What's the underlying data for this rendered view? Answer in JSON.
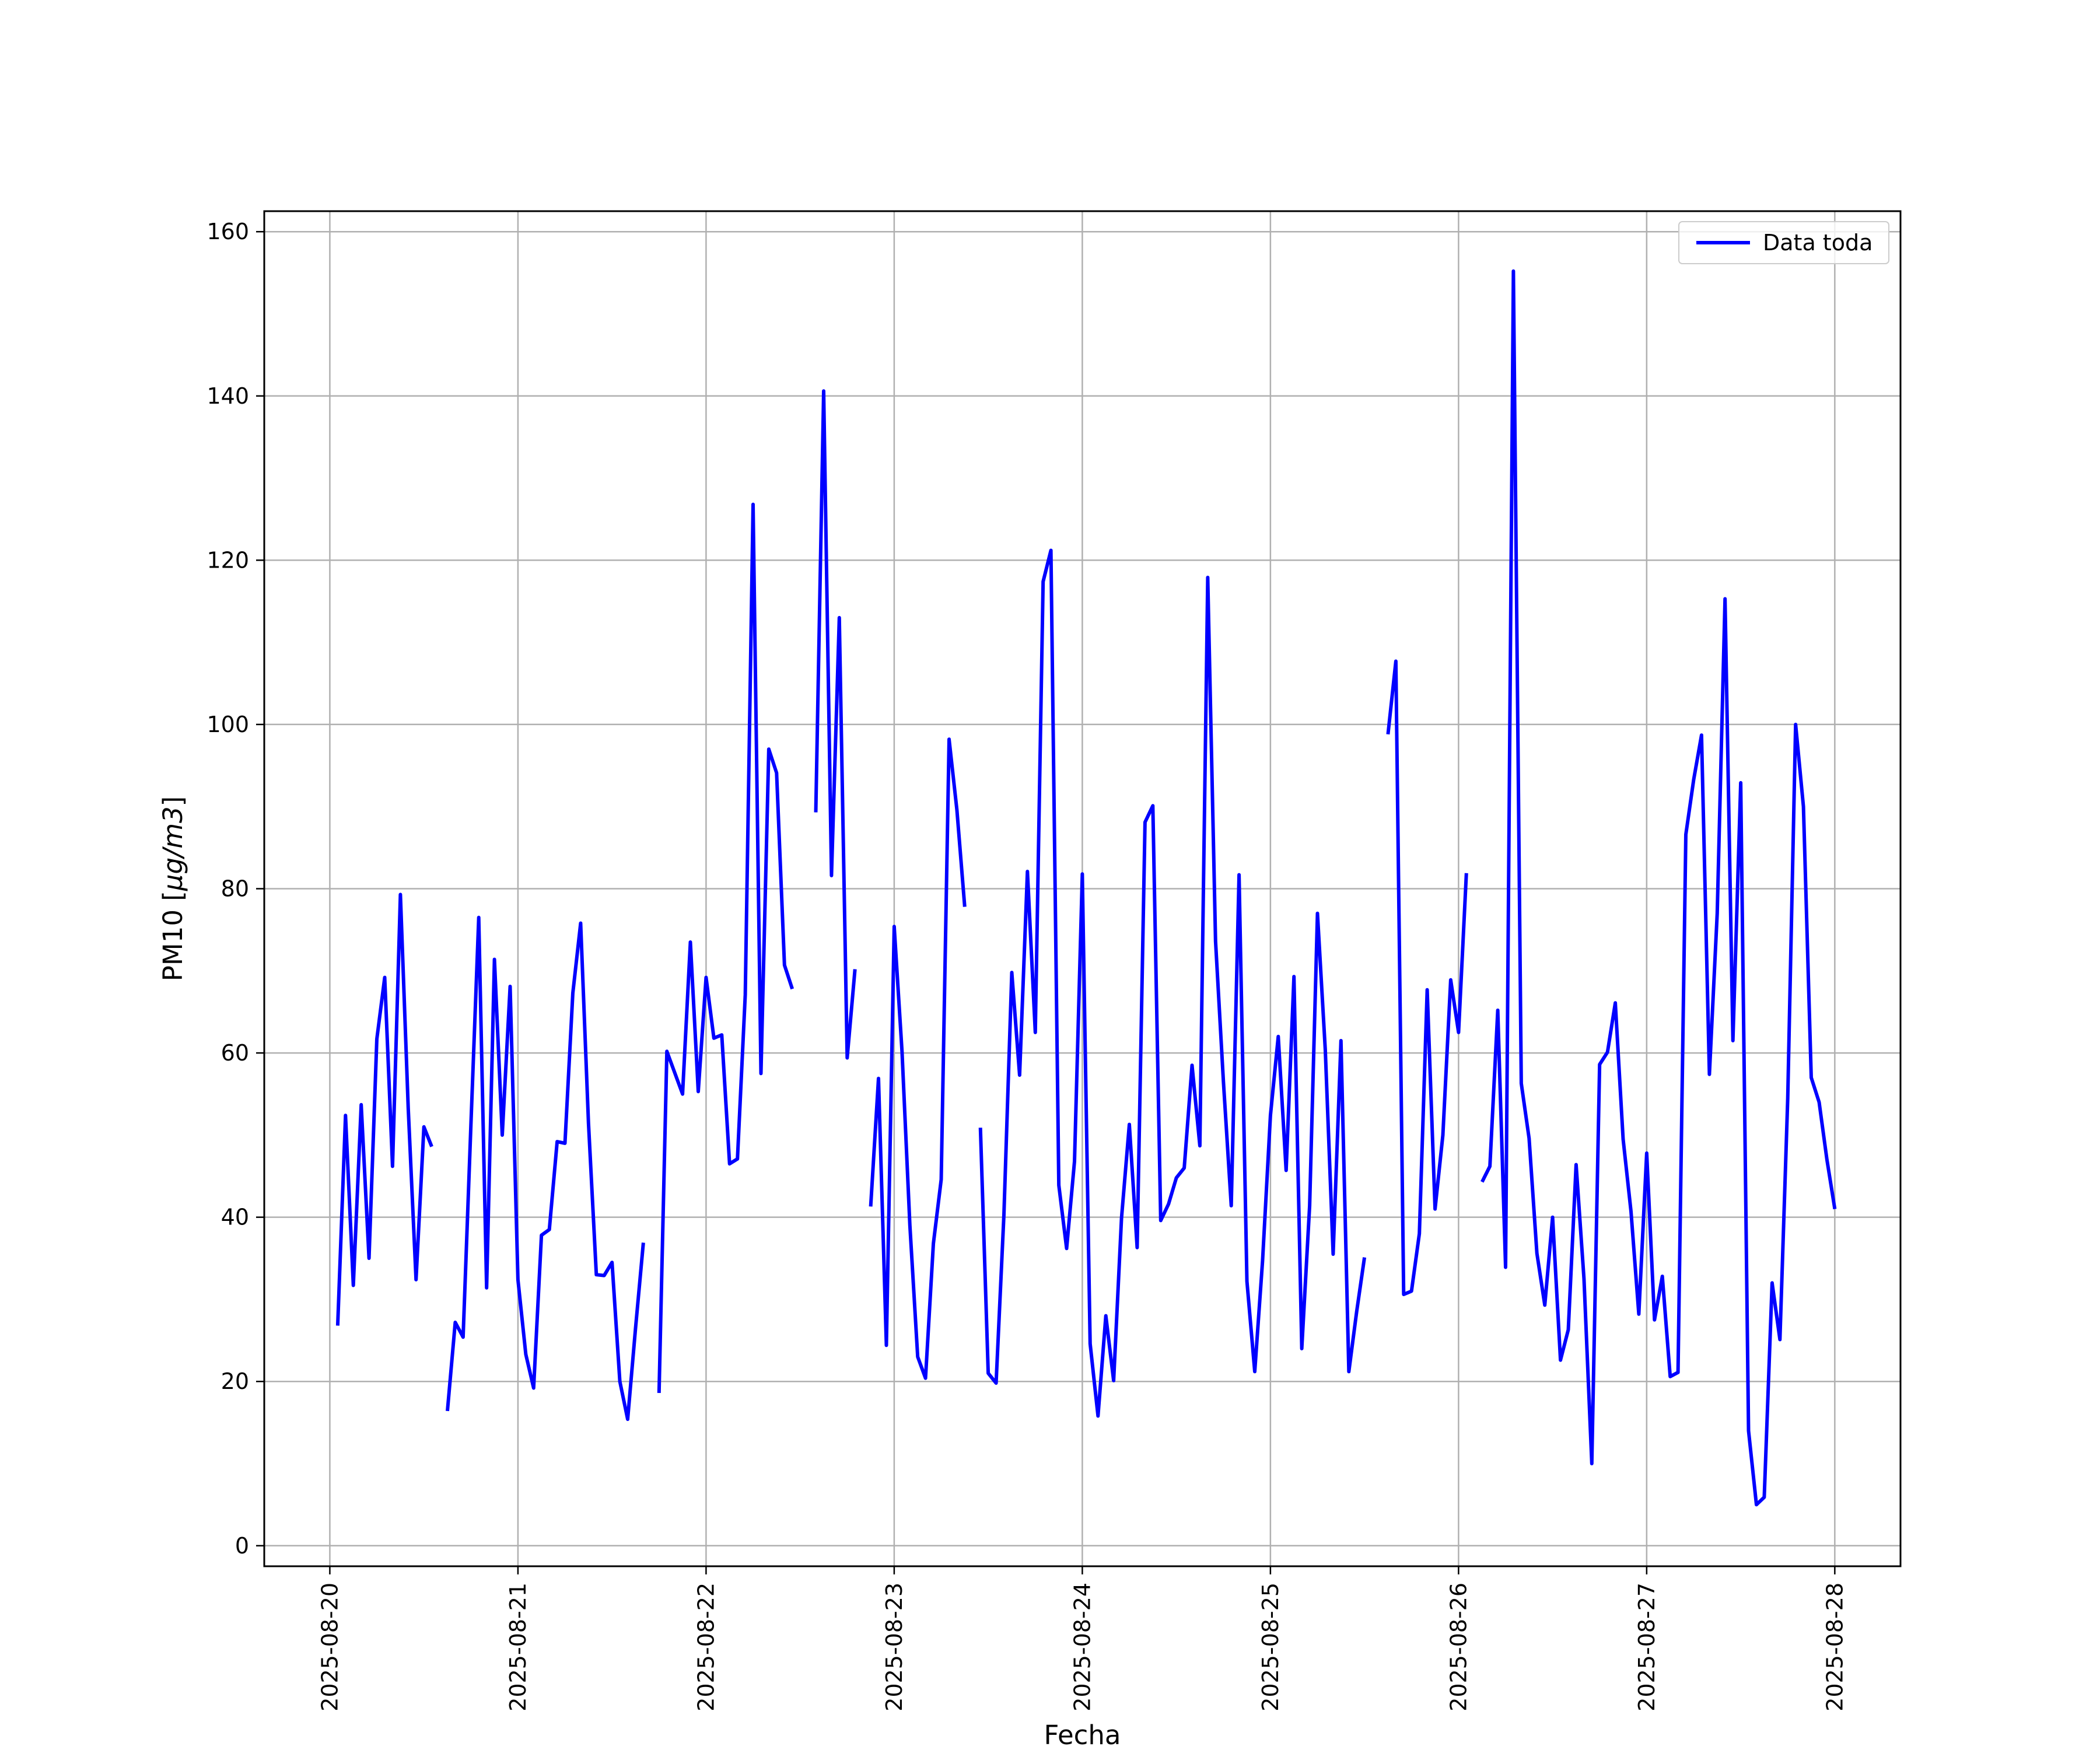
{
  "chart_data": {
    "type": "line",
    "title": "",
    "xlabel": "Fecha",
    "ylabel_text": "PM10 [",
    "ylabel_unit_italic": "μg/m3",
    "ylabel_close": "]",
    "xlim": [
      "2025-08-19 15:38",
      "2025-08-28 08:23"
    ],
    "ylim": [
      -2.5,
      162.5
    ],
    "x_ticks": [
      "2025-08-20",
      "2025-08-21",
      "2025-08-22",
      "2025-08-23",
      "2025-08-24",
      "2025-08-25",
      "2025-08-26",
      "2025-08-27",
      "2025-08-28"
    ],
    "y_ticks": [
      0,
      20,
      40,
      60,
      80,
      100,
      120,
      140,
      160
    ],
    "y_tick_labels": [
      "0",
      "20",
      "40",
      "60",
      "80",
      "100",
      "120",
      "140",
      "160"
    ],
    "grid": true,
    "legend_position": "top-right",
    "colors": {
      "line": "#0000ff",
      "grid": "#b0b0b0",
      "frame": "#000000"
    },
    "series": [
      {
        "name": "Data toda",
        "color": "#0000ff",
        "segments": [
          [
            [
              "2025-08-20 01:00",
              26.8
            ],
            [
              "2025-08-20 02:00",
              52.4
            ],
            [
              "2025-08-20 03:00",
              31.7
            ],
            [
              "2025-08-20 04:00",
              53.7
            ],
            [
              "2025-08-20 05:00",
              35.0
            ],
            [
              "2025-08-20 06:00",
              61.7
            ],
            [
              "2025-08-20 07:00",
              69.2
            ],
            [
              "2025-08-20 08:00",
              46.2
            ],
            [
              "2025-08-20 09:00",
              79.3
            ],
            [
              "2025-08-20 10:00",
              53.3
            ],
            [
              "2025-08-20 11:00",
              32.4
            ],
            [
              "2025-08-20 12:00",
              51.0
            ],
            [
              "2025-08-20 13:00",
              48.6
            ]
          ],
          [
            [
              "2025-08-20 15:00",
              16.4
            ],
            [
              "2025-08-20 16:00",
              27.2
            ],
            [
              "2025-08-20 17:00",
              25.4
            ],
            [
              "2025-08-20 18:00",
              51.3
            ],
            [
              "2025-08-20 19:00",
              76.5
            ],
            [
              "2025-08-20 20:00",
              31.4
            ],
            [
              "2025-08-20 21:00",
              71.4
            ],
            [
              "2025-08-20 22:00",
              50.0
            ],
            [
              "2025-08-20 23:00",
              68.1
            ],
            [
              "2025-08-21 00:00",
              32.4
            ],
            [
              "2025-08-21 01:00",
              23.3
            ],
            [
              "2025-08-21 02:00",
              19.2
            ],
            [
              "2025-08-21 03:00",
              37.8
            ],
            [
              "2025-08-21 04:00",
              38.5
            ],
            [
              "2025-08-21 05:00",
              49.2
            ],
            [
              "2025-08-21 06:00",
              49.0
            ],
            [
              "2025-08-21 07:00",
              67.3
            ],
            [
              "2025-08-21 08:00",
              75.8
            ],
            [
              "2025-08-21 09:00",
              51.5
            ],
            [
              "2025-08-21 10:00",
              33.0
            ],
            [
              "2025-08-21 11:00",
              32.9
            ],
            [
              "2025-08-21 12:00",
              34.5
            ],
            [
              "2025-08-21 13:00",
              20.0
            ],
            [
              "2025-08-21 14:00",
              15.4
            ],
            [
              "2025-08-21 15:00",
              26.5
            ],
            [
              "2025-08-21 16:00",
              36.9
            ]
          ],
          [
            [
              "2025-08-21 18:00",
              18.6
            ],
            [
              "2025-08-21 19:00",
              60.2
            ],
            [
              "2025-08-21 21:00",
              55.0
            ],
            [
              "2025-08-21 22:00",
              73.5
            ],
            [
              "2025-08-21 23:00",
              55.3
            ],
            [
              "2025-08-22 00:00",
              69.2
            ],
            [
              "2025-08-22 01:00",
              61.8
            ],
            [
              "2025-08-22 02:00",
              62.2
            ],
            [
              "2025-08-22 03:00",
              46.5
            ],
            [
              "2025-08-22 04:00",
              47.1
            ],
            [
              "2025-08-22 05:00",
              67.1
            ],
            [
              "2025-08-22 06:00",
              126.8
            ],
            [
              "2025-08-22 07:00",
              57.5
            ],
            [
              "2025-08-22 08:00",
              97.0
            ],
            [
              "2025-08-22 09:00",
              94.1
            ],
            [
              "2025-08-22 10:00",
              70.7
            ],
            [
              "2025-08-22 11:00",
              67.8
            ]
          ],
          [
            [
              "2025-08-22 14:00",
              89.3
            ],
            [
              "2025-08-22 15:00",
              140.6
            ],
            [
              "2025-08-22 16:00",
              81.6
            ],
            [
              "2025-08-22 17:00",
              113.0
            ],
            [
              "2025-08-22 18:00",
              59.4
            ],
            [
              "2025-08-22 19:00",
              70.2
            ]
          ],
          [
            [
              "2025-08-22 21:00",
              41.3
            ],
            [
              "2025-08-22 22:00",
              56.9
            ],
            [
              "2025-08-22 23:00",
              24.4
            ],
            [
              "2025-08-23 00:00",
              75.4
            ],
            [
              "2025-08-23 01:00",
              60.2
            ],
            [
              "2025-08-23 02:00",
              39.0
            ],
            [
              "2025-08-23 03:00",
              23.0
            ],
            [
              "2025-08-23 04:00",
              20.4
            ],
            [
              "2025-08-23 05:00",
              36.8
            ],
            [
              "2025-08-23 06:00",
              44.6
            ],
            [
              "2025-08-23 07:00",
              98.2
            ],
            [
              "2025-08-23 08:00",
              89.6
            ],
            [
              "2025-08-23 09:00",
              77.8
            ]
          ],
          [
            [
              "2025-08-23 11:00",
              50.9
            ],
            [
              "2025-08-23 12:00",
              21.0
            ],
            [
              "2025-08-23 13:00",
              19.8
            ],
            [
              "2025-08-23 14:00",
              40.3
            ],
            [
              "2025-08-23 15:00",
              69.8
            ],
            [
              "2025-08-23 16:00",
              57.3
            ],
            [
              "2025-08-23 17:00",
              82.1
            ],
            [
              "2025-08-23 18:00",
              62.5
            ],
            [
              "2025-08-23 19:00",
              117.4
            ],
            [
              "2025-08-23 20:00",
              121.2
            ],
            [
              "2025-08-23 21:00",
              43.9
            ],
            [
              "2025-08-23 22:00",
              36.2
            ],
            [
              "2025-08-23 23:00",
              46.8
            ],
            [
              "2025-08-24 00:00",
              81.8
            ],
            [
              "2025-08-24 01:00",
              24.6
            ],
            [
              "2025-08-24 02:00",
              15.8
            ],
            [
              "2025-08-24 03:00",
              28.0
            ],
            [
              "2025-08-24 04:00",
              20.1
            ],
            [
              "2025-08-24 05:00",
              39.9
            ],
            [
              "2025-08-24 06:00",
              51.3
            ],
            [
              "2025-08-24 07:00",
              36.3
            ],
            [
              "2025-08-24 08:00",
              88.1
            ],
            [
              "2025-08-24 09:00",
              90.1
            ],
            [
              "2025-08-24 10:00",
              39.6
            ],
            [
              "2025-08-24 11:00",
              41.6
            ],
            [
              "2025-08-24 12:00",
              44.8
            ],
            [
              "2025-08-24 13:00",
              46.0
            ],
            [
              "2025-08-24 14:00",
              58.5
            ],
            [
              "2025-08-24 15:00",
              48.7
            ],
            [
              "2025-08-24 16:00",
              117.9
            ],
            [
              "2025-08-24 17:00",
              73.6
            ],
            [
              "2025-08-24 18:00",
              56.5
            ],
            [
              "2025-08-24 19:00",
              41.4
            ],
            [
              "2025-08-24 20:00",
              81.7
            ],
            [
              "2025-08-24 21:00",
              32.2
            ],
            [
              "2025-08-24 22:00",
              21.2
            ],
            [
              "2025-08-24 23:00",
              34.7
            ],
            [
              "2025-08-25 00:00",
              52.4
            ],
            [
              "2025-08-25 01:00",
              62.0
            ],
            [
              "2025-08-25 02:00",
              45.7
            ],
            [
              "2025-08-25 03:00",
              69.3
            ],
            [
              "2025-08-25 04:00",
              24.0
            ],
            [
              "2025-08-25 05:00",
              41.4
            ],
            [
              "2025-08-25 06:00",
              77.0
            ],
            [
              "2025-08-25 07:00",
              60.4
            ],
            [
              "2025-08-25 08:00",
              35.5
            ],
            [
              "2025-08-25 09:00",
              61.5
            ],
            [
              "2025-08-25 10:00",
              21.2
            ],
            [
              "2025-08-25 11:00",
              28.5
            ],
            [
              "2025-08-25 12:00",
              35.1
            ]
          ],
          [
            [
              "2025-08-25 15:00",
              98.8
            ],
            [
              "2025-08-25 16:00",
              107.7
            ],
            [
              "2025-08-25 17:00",
              30.6
            ],
            [
              "2025-08-25 18:00",
              31.0
            ],
            [
              "2025-08-25 19:00",
              38.0
            ],
            [
              "2025-08-25 20:00",
              67.7
            ],
            [
              "2025-08-25 21:00",
              41.0
            ],
            [
              "2025-08-25 22:00",
              50.0
            ],
            [
              "2025-08-25 23:00",
              68.9
            ],
            [
              "2025-08-26 00:00",
              62.5
            ],
            [
              "2025-08-26 01:00",
              81.9
            ]
          ],
          [
            [
              "2025-08-26 03:00",
              44.3
            ],
            [
              "2025-08-26 04:00",
              46.2
            ],
            [
              "2025-08-26 05:00",
              65.2
            ],
            [
              "2025-08-26 06:00",
              33.9
            ],
            [
              "2025-08-26 07:00",
              155.2
            ],
            [
              "2025-08-26 08:00",
              56.3
            ],
            [
              "2025-08-26 09:00",
              49.6
            ],
            [
              "2025-08-26 10:00",
              35.6
            ],
            [
              "2025-08-26 11:00",
              29.3
            ],
            [
              "2025-08-26 12:00",
              40.0
            ],
            [
              "2025-08-26 13:00",
              22.6
            ],
            [
              "2025-08-26 14:00",
              26.3
            ],
            [
              "2025-08-26 15:00",
              46.4
            ],
            [
              "2025-08-26 16:00",
              32.5
            ],
            [
              "2025-08-26 17:00",
              10.0
            ],
            [
              "2025-08-26 18:00",
              58.6
            ],
            [
              "2025-08-26 19:00",
              60.1
            ],
            [
              "2025-08-26 20:00",
              66.1
            ],
            [
              "2025-08-26 21:00",
              49.5
            ],
            [
              "2025-08-26 22:00",
              40.7
            ],
            [
              "2025-08-26 23:00",
              28.2
            ],
            [
              "2025-08-27 00:00",
              47.8
            ],
            [
              "2025-08-27 01:00",
              27.5
            ],
            [
              "2025-08-27 02:00",
              32.8
            ],
            [
              "2025-08-27 03:00",
              20.6
            ],
            [
              "2025-08-27 04:00",
              21.1
            ],
            [
              "2025-08-27 05:00",
              86.6
            ],
            [
              "2025-08-27 06:00",
              93.3
            ],
            [
              "2025-08-27 07:00",
              98.7
            ],
            [
              "2025-08-27 08:00",
              57.4
            ],
            [
              "2025-08-27 09:00",
              77.0
            ],
            [
              "2025-08-27 10:00",
              115.3
            ],
            [
              "2025-08-27 11:00",
              61.5
            ],
            [
              "2025-08-27 12:00",
              92.9
            ],
            [
              "2025-08-27 13:00",
              14.0
            ],
            [
              "2025-08-27 14:00",
              5.0
            ],
            [
              "2025-08-27 15:00",
              5.9
            ],
            [
              "2025-08-27 16:00",
              32.0
            ],
            [
              "2025-08-27 17:00",
              25.1
            ],
            [
              "2025-08-27 18:00",
              54.5
            ],
            [
              "2025-08-27 19:00",
              100.0
            ],
            [
              "2025-08-27 20:00",
              90.0
            ],
            [
              "2025-08-27 21:00",
              57.0
            ],
            [
              "2025-08-27 22:00",
              54.0
            ],
            [
              "2025-08-27 23:00",
              47.0
            ],
            [
              "2025-08-28 00:00",
              41.0
            ]
          ]
        ]
      }
    ]
  }
}
